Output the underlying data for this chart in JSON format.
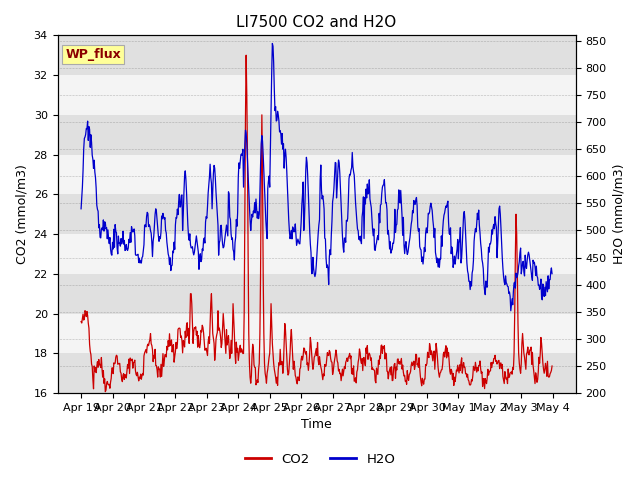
{
  "title": "LI7500 CO2 and H2O",
  "xlabel": "Time",
  "ylabel_left": "CO2 (mmol/m3)",
  "ylabel_right": "H2O (mmol/m3)",
  "co2_ylim": [
    16,
    34
  ],
  "h2o_ylim": [
    200,
    860
  ],
  "co2_color": "#cc0000",
  "h2o_color": "#0000cc",
  "background_color": "#ffffff",
  "strip_colors": [
    "#e0e0e0",
    "#f4f4f4"
  ],
  "annotation_text": "WP_flux",
  "annotation_color": "#8b0000",
  "annotation_bg": "#ffff99",
  "xtick_labels": [
    "Apr 19",
    "Apr 20",
    "Apr 21",
    "Apr 22",
    "Apr 23",
    "Apr 24",
    "Apr 25",
    "Apr 26",
    "Apr 27",
    "Apr 28",
    "Apr 29",
    "Apr 30",
    "May 1",
    "May 2",
    "May 3",
    "May 4"
  ],
  "title_fontsize": 11,
  "axis_fontsize": 9,
  "tick_fontsize": 8
}
